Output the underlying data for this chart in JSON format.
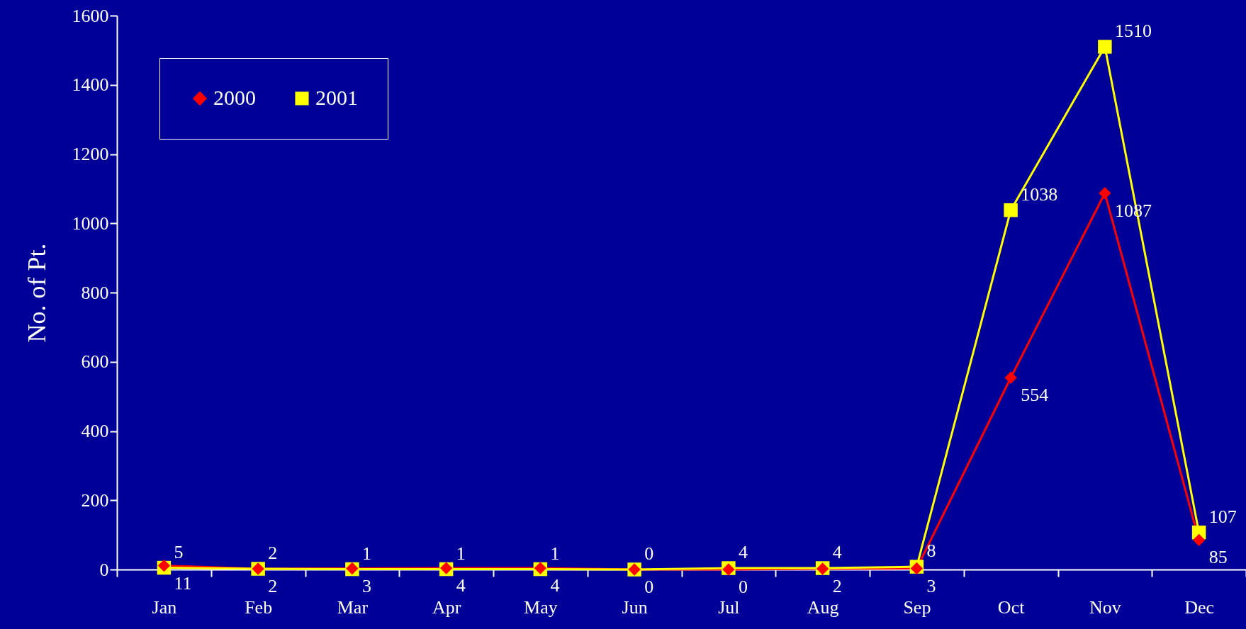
{
  "chart_data": {
    "type": "line",
    "ylabel": "No. of Pt.",
    "categories": [
      "Jan",
      "Feb",
      "Mar",
      "Apr",
      "May",
      "Jun",
      "Jul",
      "Aug",
      "Sep",
      "Oct",
      "Nov",
      "Dec"
    ],
    "series": [
      {
        "name": "2000",
        "color": "#ff0000",
        "marker": "diamond",
        "values": [
          11,
          2,
          3,
          4,
          4,
          0,
          0,
          2,
          3,
          554,
          1087,
          85
        ]
      },
      {
        "name": "2001",
        "color": "#ffff00",
        "marker": "square",
        "values": [
          5,
          2,
          1,
          1,
          1,
          0,
          4,
          4,
          8,
          1038,
          1510,
          107
        ]
      }
    ],
    "ylim": [
      0,
      1600
    ],
    "yticks": [
      0,
      200,
      400,
      600,
      800,
      1000,
      1200,
      1400,
      1600
    ],
    "grid": false,
    "legend": "top left",
    "data_labels": true
  }
}
